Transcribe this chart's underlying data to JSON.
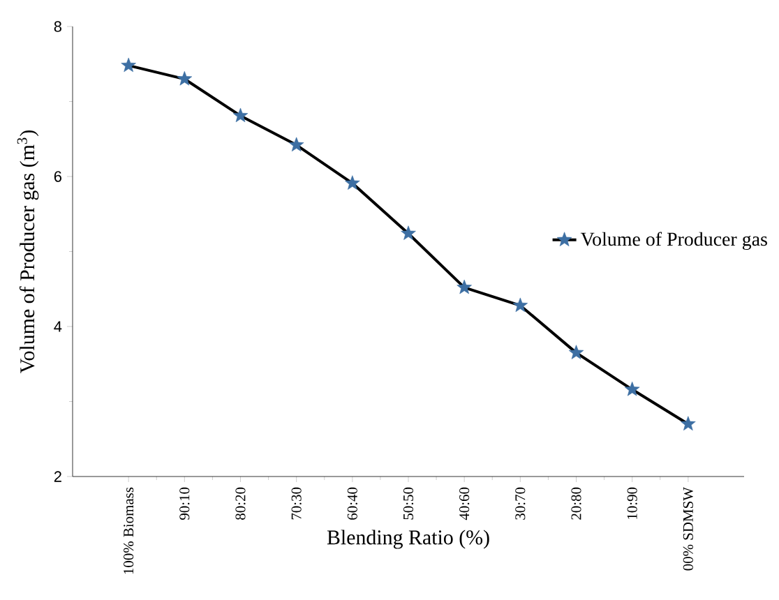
{
  "chart_data": {
    "type": "line",
    "xlabel": "Blending Ratio (%)",
    "ylabel": "Volume of Producer gas (m$^{3}$)",
    "categories": [
      "100% Biomass",
      "90:10",
      "80:20",
      "70:30",
      "60:40",
      "50:50",
      "40:60",
      "30:70",
      "20:80",
      "10:90",
      "00% SDMSW"
    ],
    "series": [
      {
        "name": "Volume of Producer gas",
        "color": "#000000",
        "values": [
          7.48,
          7.3,
          6.81,
          6.42,
          5.91,
          5.24,
          4.52,
          4.28,
          3.65,
          3.16,
          2.7
        ]
      }
    ],
    "ylim": [
      2,
      8
    ],
    "yticks": [
      2,
      4,
      6,
      8
    ],
    "grid": false,
    "legend": "right",
    "marker": "star",
    "line_style": "solid"
  }
}
